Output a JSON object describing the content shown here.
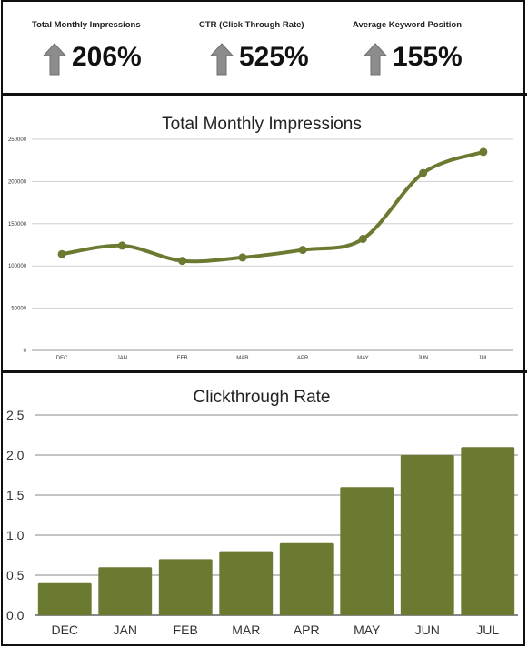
{
  "kpis": [
    {
      "label": "Total Monthly Impressions",
      "value": "206%",
      "icon": "arrow-up-icon"
    },
    {
      "label": "CTR (Click Through Rate)",
      "value": "525%",
      "icon": "arrow-up-icon"
    },
    {
      "label": "Average Keyword Position",
      "value": "155%",
      "icon": "arrow-up-icon"
    }
  ],
  "colors": {
    "series": "#6b7a31",
    "grid": "#cfcfcf",
    "arrow": "#8c8c8c"
  },
  "chart_data": [
    {
      "type": "line",
      "title": "Total Monthly Impressions",
      "categories": [
        "DEC",
        "JAN",
        "FEB",
        "MAR",
        "APR",
        "MAY",
        "JUN",
        "JUL"
      ],
      "values": [
        114000,
        124000,
        106000,
        110000,
        119000,
        132000,
        210000,
        235000
      ],
      "ylim": [
        0,
        250000
      ],
      "yticks": [
        "0",
        "50000",
        "100000",
        "150000",
        "200000",
        "250000"
      ],
      "grid": true,
      "smooth": true
    },
    {
      "type": "bar",
      "title": "Clickthrough Rate",
      "categories": [
        "DEC",
        "JAN",
        "FEB",
        "MAR",
        "APR",
        "MAY",
        "JUN",
        "JUL"
      ],
      "values": [
        0.4,
        0.6,
        0.7,
        0.8,
        0.9,
        1.6,
        2.0,
        2.1
      ],
      "ylim": [
        0,
        2.5
      ],
      "yticks": [
        "0.0",
        "0.5",
        "1.0",
        "1.5",
        "2.0",
        "2.5"
      ],
      "grid": true
    }
  ]
}
